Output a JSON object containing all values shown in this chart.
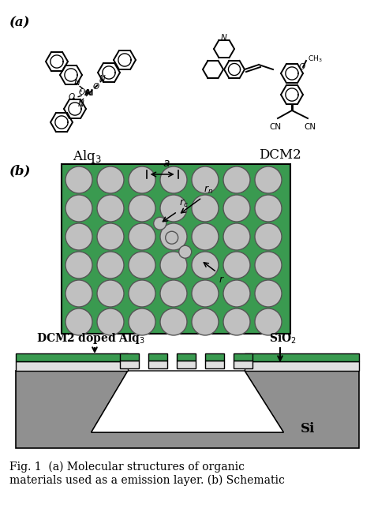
{
  "bg_color": "#ffffff",
  "green_color": "#3a9a50",
  "gray_color": "#aaaaaa",
  "light_gray": "#d8d8d8",
  "dark_gray": "#909090",
  "circle_fill": "#c0c0c0",
  "circle_edge": "#555555",
  "alq3_label": "Alq$_3$",
  "dcm2_label": "DCM2",
  "label_a": "(a)",
  "label_b": "(b)",
  "dcm2_doped_label": "DCM2 doped Alq$_3$",
  "sio2_label": "SiO$_2$",
  "si_label": "Si",
  "fig_caption": "Fig. 1  (a) Molecular structures of organic\nmaterials used as a emission layer. (b) Schematic",
  "caption_fontsize": 10
}
